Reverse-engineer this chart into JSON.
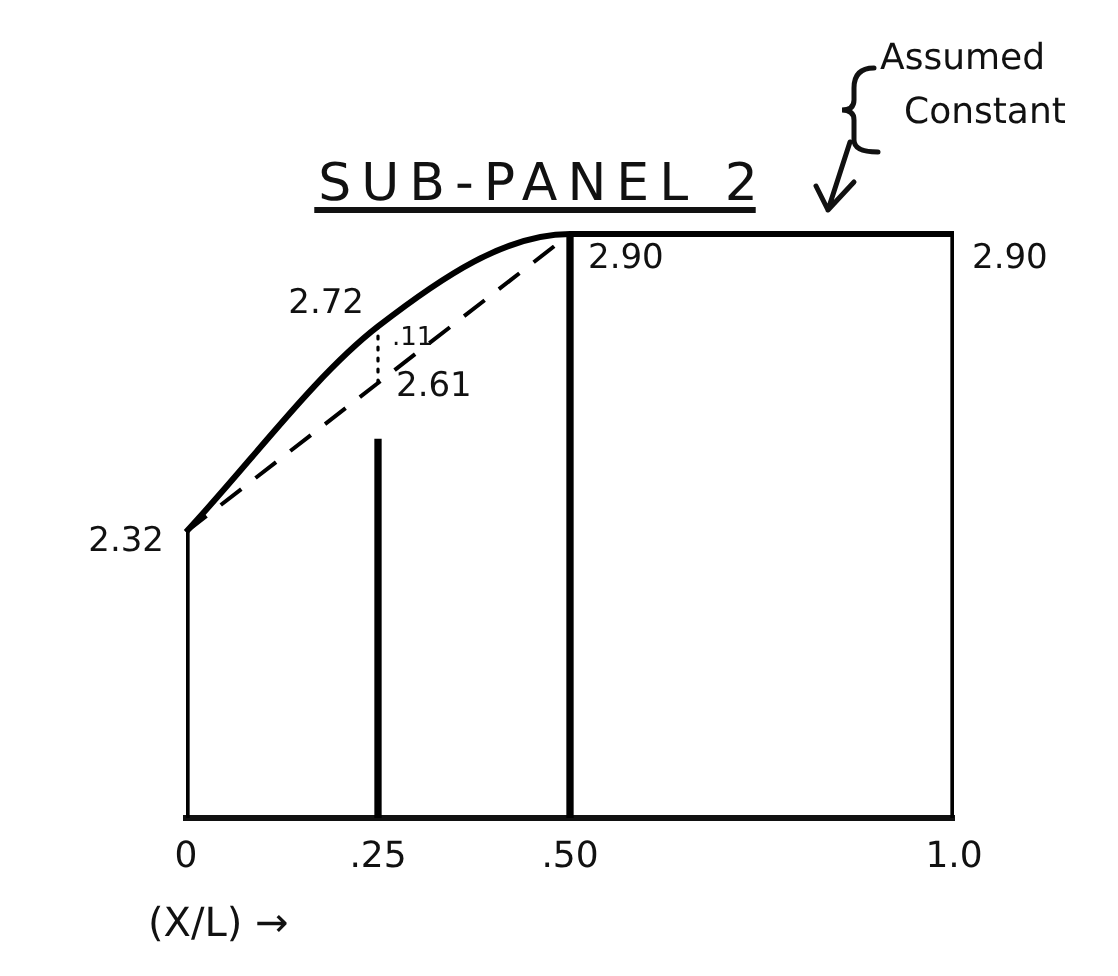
{
  "chart_data": {
    "type": "line",
    "title": "SUB-PANEL 2",
    "xlabel": "(X/L) →",
    "series": [
      {
        "x": [
          0,
          0.25,
          0.5,
          1
        ],
        "values": [
          2.32,
          2.72,
          2.9,
          2.9
        ],
        "color": "#000000",
        "line_style": "solid",
        "value_labels": [
          "2.32",
          "2.72",
          "2.90",
          "2.90"
        ]
      },
      {
        "x": [
          0,
          0.25,
          0.5
        ],
        "values": [
          2.32,
          2.61,
          2.9
        ],
        "color": "#000000",
        "line_style": "dashed",
        "value_labels": [
          null,
          "2.61",
          null
        ]
      },
      {
        "x": [
          0.25,
          0.25
        ],
        "values": [
          2.61,
          2.72
        ],
        "color": "#000000",
        "line_style": "dotted"
      },
      {
        "type": "bar",
        "x": [
          0,
          0.25,
          0.5,
          1
        ],
        "values": [
          2.32,
          2.5,
          2.9,
          2.9
        ],
        "color": "#000000"
      }
    ],
    "xlim": [
      0,
      1
    ],
    "xticks": [
      0,
      {
        "value": 0.25,
        "label": ".25"
      },
      {
        "value": 0.5,
        "label": ".50"
      },
      {
        "value": 1,
        "label": "1.0"
      }
    ],
    "tick_labels": "x",
    "marker": "none",
    "annotations": [
      {
        "text": ".11",
        "x": 0.25,
        "y": 2.67
      },
      "Assumed Constant"
    ]
  }
}
